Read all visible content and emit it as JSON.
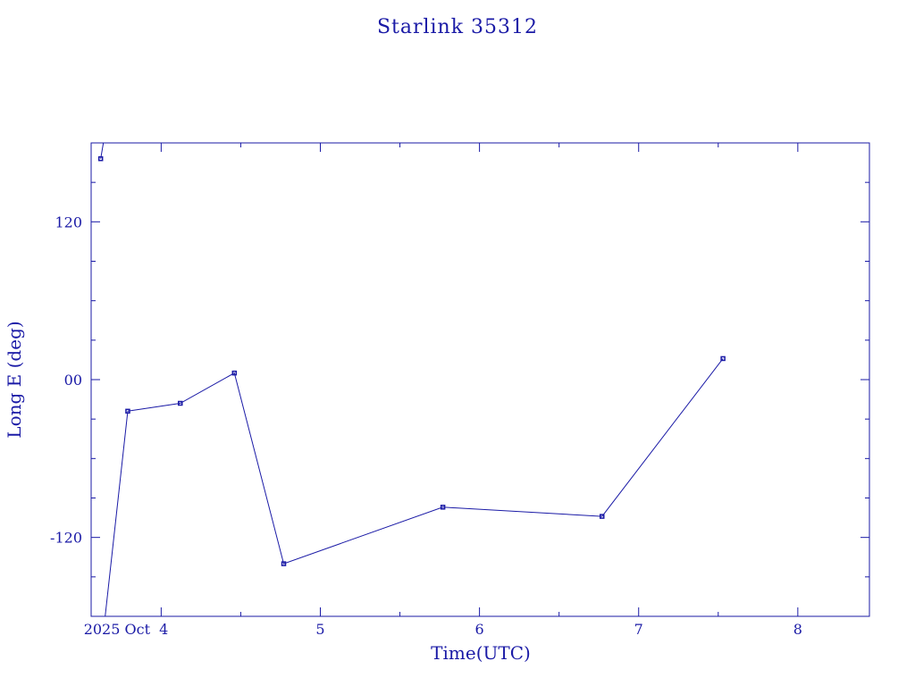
{
  "chart_data": {
    "type": "line",
    "title": "Starlink 35312",
    "xlabel": "Time(UTC)",
    "ylabel": "Long E (deg)",
    "x_unit": "day of Oct 2025 (UTC)",
    "xlim": [
      3.56,
      8.45
    ],
    "ylim": [
      -180,
      180
    ],
    "x_ticks": [
      {
        "value": 4,
        "label": "2025 Oct  4"
      },
      {
        "value": 5,
        "label": "5"
      },
      {
        "value": 6,
        "label": "6"
      },
      {
        "value": 7,
        "label": "7"
      },
      {
        "value": 8,
        "label": "8"
      }
    ],
    "y_ticks": [
      {
        "value": 120,
        "label": "120"
      },
      {
        "value": 0,
        "label": "00"
      },
      {
        "value": -120,
        "label": "-120"
      }
    ],
    "series": [
      {
        "points": [
          {
            "x": 3.62,
            "y": 168
          },
          {
            "x": 3.79,
            "y": -24
          },
          {
            "x": 4.12,
            "y": -18
          },
          {
            "x": 4.46,
            "y": 5
          },
          {
            "x": 4.77,
            "y": -140
          },
          {
            "x": 5.77,
            "y": -97
          },
          {
            "x": 6.77,
            "y": -104
          },
          {
            "x": 7.53,
            "y": 16
          }
        ],
        "wrap_segment": {
          "from": {
            "x": 3.62,
            "y": 168
          },
          "to": {
            "x": 3.79,
            "y": -24
          }
        }
      }
    ],
    "grid": false,
    "legend": "none"
  }
}
